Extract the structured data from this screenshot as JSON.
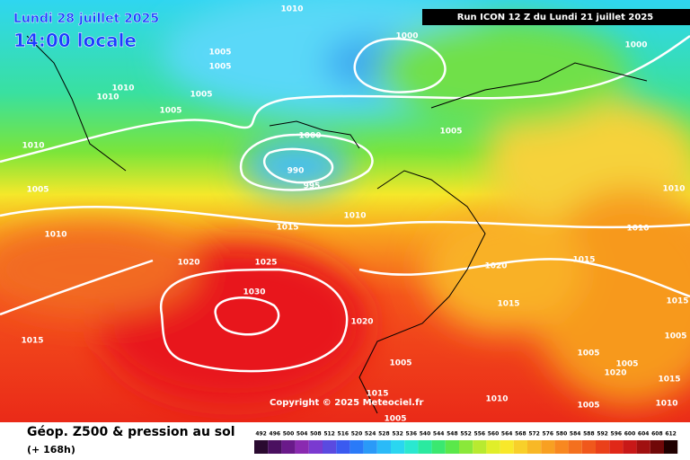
{
  "header": {
    "date": "Lundi 28 juillet 2025",
    "time": "14:00 locale",
    "run": "Run ICON 12 Z du Lundi 21 juillet 2025"
  },
  "map": {
    "isobar_labels": [
      1010,
      1000,
      1000,
      1005,
      1005,
      1010,
      1010,
      1005,
      1005,
      1000,
      1005,
      1010,
      990,
      995,
      1005,
      1010,
      1015,
      1010,
      1010,
      1010,
      1020,
      1025,
      1020,
      1015,
      1030,
      1015,
      1015,
      1020,
      1015,
      1005,
      1005,
      1005,
      1020,
      1005,
      1015,
      1015,
      1010,
      1005,
      1010,
      1005
    ],
    "copyright": "Copyright © 2025 Meteociel.fr"
  },
  "footer": {
    "caption": "Géop. Z500 & pression au sol",
    "lead": "(+ 168h)",
    "legend": [
      492,
      496,
      500,
      504,
      508,
      512,
      516,
      520,
      524,
      528,
      532,
      536,
      540,
      544,
      548,
      552,
      556,
      560,
      564,
      568,
      572,
      576,
      580,
      584,
      588,
      592,
      596,
      600,
      604,
      608,
      612
    ]
  }
}
